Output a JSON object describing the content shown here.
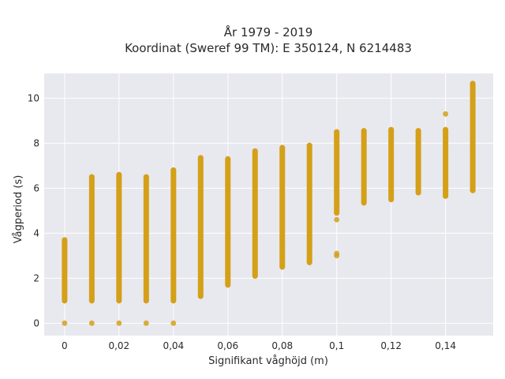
{
  "chart_data": {
    "type": "scatter",
    "title_lines": [
      "År 1979 - 2019",
      "Koordinat (Sweref 99 TM): E 350124, N 6214483"
    ],
    "xlabel": "Signifikant våghöjd (m)",
    "ylabel": "Vågperiod (s)",
    "xlim": [
      -0.0075,
      0.1575
    ],
    "ylim": [
      -0.55,
      11.1
    ],
    "xticks": [
      0,
      0.02,
      0.04,
      0.06,
      0.08,
      0.1,
      0.12,
      0.14
    ],
    "xtick_labels": [
      "0",
      "0,02",
      "0,04",
      "0,06",
      "0,08",
      "0,1",
      "0,12",
      "0,14"
    ],
    "yticks": [
      0,
      2,
      4,
      6,
      8,
      10
    ],
    "ytick_labels": [
      "0",
      "2",
      "4",
      "6",
      "8",
      "10"
    ],
    "grid": true,
    "colors": {
      "marker": "#d4a017",
      "plot_bg": "#e8e8ef",
      "grid": "#ffffff"
    },
    "columns": [
      {
        "x": 0.0,
        "y_min": 1.0,
        "y_max": 3.7,
        "extra_points": [
          0.0
        ]
      },
      {
        "x": 0.01,
        "y_min": 1.0,
        "y_max": 6.5,
        "extra_points": [
          0.0
        ]
      },
      {
        "x": 0.02,
        "y_min": 1.0,
        "y_max": 6.6,
        "extra_points": [
          0.0
        ]
      },
      {
        "x": 0.03,
        "y_min": 1.0,
        "y_max": 6.5,
        "extra_points": [
          0.0
        ]
      },
      {
        "x": 0.04,
        "y_min": 1.0,
        "y_max": 6.8,
        "extra_points": [
          0.0
        ]
      },
      {
        "x": 0.05,
        "y_min": 1.2,
        "y_max": 7.35,
        "extra_points": []
      },
      {
        "x": 0.06,
        "y_min": 1.7,
        "y_max": 7.3,
        "extra_points": []
      },
      {
        "x": 0.07,
        "y_min": 2.1,
        "y_max": 7.65,
        "extra_points": []
      },
      {
        "x": 0.08,
        "y_min": 2.5,
        "y_max": 7.8,
        "extra_points": [
          3.4,
          3.7
        ]
      },
      {
        "x": 0.09,
        "y_min": 2.7,
        "y_max": 7.9,
        "extra_points": [
          3.5
        ]
      },
      {
        "x": 0.1,
        "y_min": 4.9,
        "y_max": 8.5,
        "extra_points": [
          3.0,
          3.1,
          4.6
        ]
      },
      {
        "x": 0.11,
        "y_min": 5.35,
        "y_max": 8.55,
        "extra_points": []
      },
      {
        "x": 0.12,
        "y_min": 5.5,
        "y_max": 8.6,
        "extra_points": []
      },
      {
        "x": 0.13,
        "y_min": 5.8,
        "y_max": 8.55,
        "extra_points": []
      },
      {
        "x": 0.14,
        "y_min": 5.65,
        "y_max": 8.6,
        "extra_points": [
          9.3
        ]
      },
      {
        "x": 0.15,
        "y_min": 5.9,
        "y_max": 10.65,
        "extra_points": []
      }
    ]
  }
}
